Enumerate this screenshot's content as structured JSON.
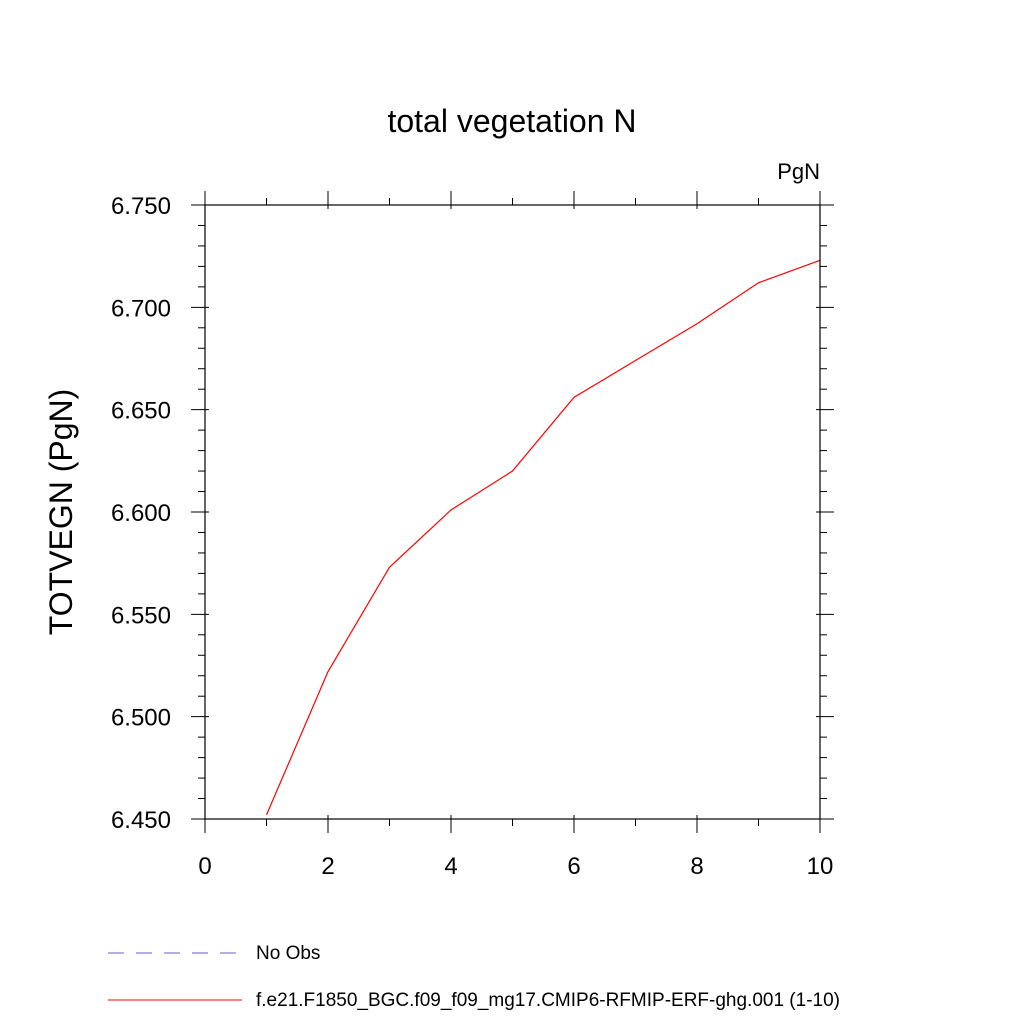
{
  "chart_data": {
    "type": "line",
    "title": "total vegetation N",
    "units_label": "PgN",
    "xlabel": "",
    "ylabel": "TOTVEGN  (PgN)",
    "xlim": [
      0,
      10
    ],
    "ylim": [
      6.45,
      6.75
    ],
    "x_ticks": [
      0,
      2,
      4,
      6,
      8,
      10
    ],
    "x_tick_labels": [
      "0",
      "2",
      "4",
      "6",
      "8",
      "10"
    ],
    "x_minor_ticks": [
      1,
      3,
      5,
      7,
      9
    ],
    "y_ticks": [
      6.45,
      6.5,
      6.55,
      6.6,
      6.65,
      6.7,
      6.75
    ],
    "y_tick_labels": [
      "6.450",
      "6.500",
      "6.550",
      "6.600",
      "6.650",
      "6.700",
      "6.750"
    ],
    "y_minor_step": 0.01,
    "grid": false,
    "legend_position": "bottom",
    "series": [
      {
        "name": "No Obs",
        "color": "#6a5acd",
        "style": "dashed",
        "x": [],
        "y": []
      },
      {
        "name": "f.e21.F1850_BGC.f09_f09_mg17.CMIP6-RFMIP-ERF-ghg.001 (1-10)",
        "color": "#ff0000",
        "style": "solid",
        "x": [
          1,
          2,
          3,
          4,
          5,
          6,
          7,
          8,
          9,
          10
        ],
        "y": [
          6.452,
          6.522,
          6.573,
          6.601,
          6.62,
          6.656,
          6.674,
          6.692,
          6.712,
          6.723
        ]
      }
    ]
  }
}
